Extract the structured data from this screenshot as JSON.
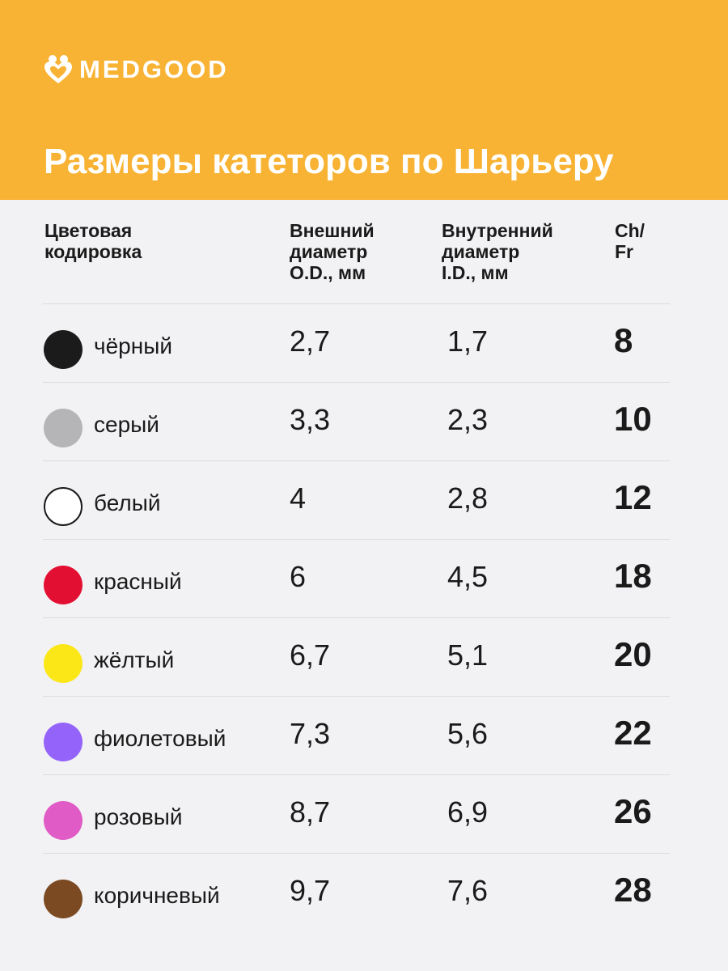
{
  "brand": {
    "name": "MEDGOOD",
    "logo_icon": "heart-people-icon"
  },
  "title": "Размеры катеторов по Шарьеру",
  "headers": {
    "color": "Цветовая\nкодировка",
    "outer": "Внешний\nдиаметр\nO.D., мм",
    "inner": "Внутренний\nдиаметр\nI.D., мм",
    "ch": "Ch/\nFr"
  },
  "colors": {
    "header_bg": "#f8b334",
    "page_bg": "#f2f2f4"
  },
  "rows": [
    {
      "name": "чёрный",
      "swatch": "#1b1b1b",
      "od": "2,7",
      "id": "1,7",
      "ch": "8"
    },
    {
      "name": "серый",
      "swatch": "#b5b5b8",
      "od": "3,3",
      "id": "2,3",
      "ch": "10"
    },
    {
      "name": "белый",
      "swatch": "#ffffff",
      "od": "4",
      "id": "2,8",
      "ch": "12"
    },
    {
      "name": "красный",
      "swatch": "#e30f33",
      "od": "6",
      "id": "4,5",
      "ch": "18"
    },
    {
      "name": "жёлтый",
      "swatch": "#fbe718",
      "od": "6,7",
      "id": "5,1",
      "ch": "20"
    },
    {
      "name": "фиолетовый",
      "swatch": "#9463fa",
      "od": "7,3",
      "id": "5,6",
      "ch": "22"
    },
    {
      "name": "розовый",
      "swatch": "#e05bc6",
      "od": "8,7",
      "id": "6,9",
      "ch": "26"
    },
    {
      "name": "коричневый",
      "swatch": "#7b4a22",
      "od": "9,7",
      "id": "7,6",
      "ch": "28"
    }
  ]
}
